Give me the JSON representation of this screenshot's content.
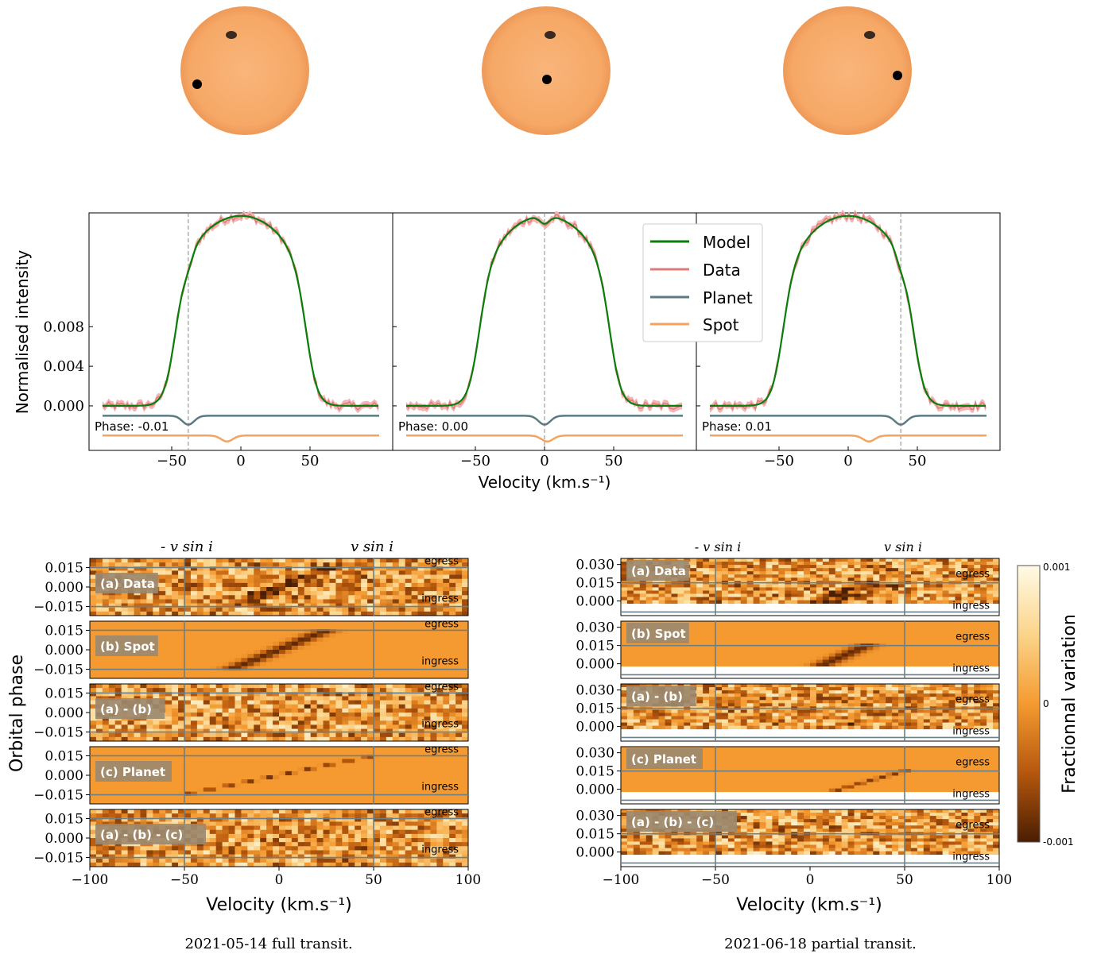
{
  "stars": [
    {
      "label": "star-phase-left"
    },
    {
      "label": "star-phase-center"
    },
    {
      "label": "star-phase-right"
    }
  ],
  "colors": {
    "model": "#0a7d0a",
    "data": "#e07b7b",
    "data_band": "#f2b4b4",
    "planet": "#5b7a83",
    "spot": "#f4a460",
    "star_fill": "#f7ae6f",
    "star_edge": "#e58d4c",
    "cmap_low": "#4a1e02",
    "cmap_mid": "#f59a30",
    "cmap_high": "#fffbe6"
  },
  "profile_panels": {
    "ylabel": "Normalised intensity",
    "xlabel": "Velocity (km.s⁻¹)",
    "yticks": [
      "0.000",
      "0.004",
      "0.008"
    ],
    "xticks": [
      "−50",
      "0",
      "50"
    ],
    "panels": [
      {
        "phase_label": "Phase: -0.01"
      },
      {
        "phase_label": "Phase: 0.00"
      },
      {
        "phase_label": "Phase: 0.01"
      }
    ],
    "legend": [
      "Model",
      "Data",
      "Planet",
      "Spot"
    ]
  },
  "tomography_left": {
    "ylabel": "Orbital phase",
    "xlabel": "Velocity (km.s⁻¹)",
    "yticks": [
      "0.015",
      "0.000",
      "−0.015"
    ],
    "xticks": [
      "−100",
      "−50",
      "0",
      "50",
      "100"
    ],
    "vsini_neg": "- v sin i",
    "vsini_pos": "v sin i",
    "egress": "egress",
    "ingress": "ingress",
    "rows": [
      "(a) Data",
      "(b) Spot",
      "(a) - (b)",
      "(c) Planet",
      "(a) - (b) - (c)"
    ],
    "caption": "2021-05-14 full transit."
  },
  "tomography_right": {
    "xlabel": "Velocity (km.s⁻¹)",
    "yticks": [
      "0.030",
      "0.015",
      "0.000"
    ],
    "xticks": [
      "−100",
      "−50",
      "0",
      "50",
      "100"
    ],
    "vsini_neg": "- v sin i",
    "vsini_pos": "v sin i",
    "egress": "egress",
    "ingress": "ingress",
    "rows": [
      "(a) Data",
      "(b) Spot",
      "(a) - (b)",
      "(c) Planet",
      "(a) - (b) - (c)"
    ],
    "caption": "2021-06-18 partial transit."
  },
  "colorbar": {
    "label": "Fractionnal variation",
    "ticks": [
      "0.001",
      "0",
      "-0.001"
    ]
  },
  "chart_data": [
    {
      "type": "line",
      "title": "",
      "xlabel": "Velocity (km.s⁻¹)",
      "ylabel": "Normalised intensity",
      "xlim": [
        -100,
        100
      ],
      "ylim": [
        -0.0045,
        0.0195
      ],
      "series": [
        {
          "name": "Model",
          "description_values": "stellar line profile, flat ~0 outside |v|>55, peak ~0.019 near v=0"
        },
        {
          "name": "Data"
        },
        {
          "name": "Planet"
        },
        {
          "name": "Spot"
        }
      ],
      "panels": [
        {
          "phase": -0.01,
          "planet_dip_velocity": -38,
          "spot_dip_velocity": -10
        },
        {
          "phase": 0.0,
          "planet_dip_velocity": 0,
          "spot_dip_velocity": 2
        },
        {
          "phase": 0.01,
          "planet_dip_velocity": 38,
          "spot_dip_velocity": 15
        }
      ]
    },
    {
      "type": "heatmap",
      "dataset": "2021-05-14 full transit.",
      "xlim": [
        -100,
        100
      ],
      "ylim": [
        -0.022,
        0.022
      ],
      "vsini": 50,
      "ingress_phase": -0.015,
      "egress_phase": 0.015,
      "spot_track": {
        "v_start": -25,
        "v_end": 25
      },
      "planet_track": {
        "v_start": -50,
        "v_end": 50
      }
    },
    {
      "type": "heatmap",
      "dataset": "2021-06-18 partial transit.",
      "xlim": [
        -100,
        100
      ],
      "ylim": [
        -0.012,
        0.035
      ],
      "vsini": 50,
      "ingress_phase": -0.009,
      "egress_phase": 0.015,
      "spot_track": {
        "v_start": -5,
        "v_end": 30
      },
      "planet_track": {
        "v_start": -5,
        "v_end": 50
      }
    }
  ]
}
